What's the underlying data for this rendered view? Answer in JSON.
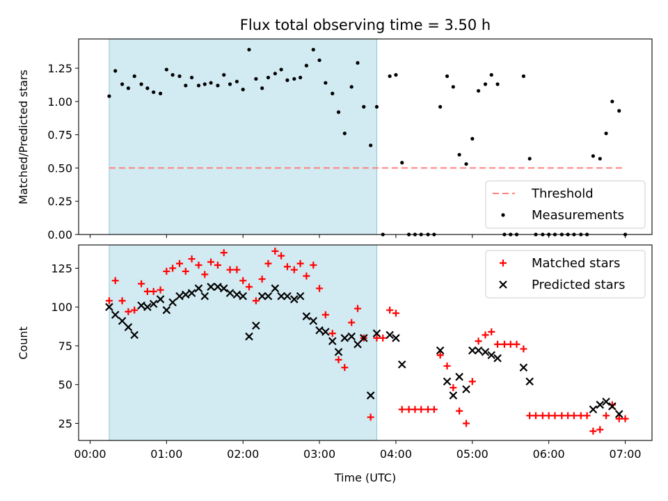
{
  "chart_data": [
    {
      "type": "scatter",
      "title": "Flux total observing time = 3.50 h",
      "xlabel": "",
      "ylabel": "Matched/Predicted stars",
      "xlim": [
        -0.15,
        7.35
      ],
      "ylim": [
        0,
        1.47
      ],
      "yticks": [
        0,
        0.25,
        0.5,
        0.75,
        1.0,
        1.25
      ],
      "ytick_labels": [
        "0.00",
        "0.25",
        "0.50",
        "0.75",
        "1.00",
        "1.25"
      ],
      "shaded_interval": [
        0.25,
        3.75
      ],
      "shade_color": "#add8e6",
      "threshold": {
        "name": "Threshold",
        "value": 0.5,
        "x_range": [
          0.25,
          7.0
        ],
        "color": "#ff8080",
        "style": "dashed"
      },
      "legend": {
        "location": "lower right",
        "entries": [
          "Threshold",
          "Measurements"
        ]
      },
      "series": [
        {
          "name": "Measurements",
          "marker": "point",
          "color": "#000000",
          "x": [
            0.25,
            0.33,
            0.42,
            0.5,
            0.58,
            0.67,
            0.75,
            0.83,
            0.92,
            1.0,
            1.08,
            1.17,
            1.25,
            1.33,
            1.42,
            1.5,
            1.58,
            1.67,
            1.75,
            1.83,
            1.92,
            2.0,
            2.08,
            2.17,
            2.25,
            2.33,
            2.42,
            2.5,
            2.58,
            2.67,
            2.75,
            2.83,
            2.92,
            3.0,
            3.08,
            3.17,
            3.25,
            3.33,
            3.42,
            3.5,
            3.58,
            3.67,
            3.75,
            3.83,
            3.92,
            4.0,
            4.08,
            4.17,
            4.25,
            4.33,
            4.42,
            4.5,
            4.58,
            4.67,
            4.75,
            4.83,
            4.92,
            5.0,
            5.08,
            5.17,
            5.25,
            5.33,
            5.42,
            5.5,
            5.58,
            5.67,
            5.75,
            5.83,
            5.92,
            6.0,
            6.08,
            6.17,
            6.25,
            6.33,
            6.42,
            6.5,
            6.58,
            6.67,
            6.75,
            6.83,
            6.92,
            7.0
          ],
          "y": [
            1.04,
            1.23,
            1.13,
            1.1,
            1.19,
            1.13,
            1.1,
            1.07,
            1.06,
            1.24,
            1.2,
            1.19,
            1.12,
            1.18,
            1.12,
            1.13,
            1.14,
            1.12,
            1.2,
            1.13,
            1.15,
            1.09,
            1.39,
            1.17,
            1.1,
            1.18,
            1.21,
            1.24,
            1.16,
            1.17,
            1.18,
            1.27,
            1.39,
            1.31,
            1.14,
            1.06,
            0.92,
            0.76,
            1.11,
            1.29,
            0.96,
            0.67,
            0.96,
            0.0,
            1.19,
            1.2,
            0.54,
            0.0,
            0.0,
            0.0,
            0.0,
            0.0,
            0.96,
            1.19,
            1.11,
            0.6,
            0.53,
            0.72,
            1.08,
            1.13,
            1.2,
            1.13,
            0.0,
            0.0,
            0.0,
            1.19,
            0.57,
            0.0,
            0.0,
            0.0,
            0.0,
            0.0,
            0.0,
            0.0,
            0.0,
            0.0,
            0.59,
            0.57,
            0.76,
            1.0,
            0.93,
            0.0
          ]
        }
      ]
    },
    {
      "type": "scatter",
      "title": "",
      "xlabel": "Time (UTC)",
      "ylabel": "Count",
      "xlim": [
        -0.15,
        7.35
      ],
      "ylim": [
        14,
        140
      ],
      "yticks": [
        25,
        50,
        75,
        100,
        125
      ],
      "ytick_labels": [
        "25",
        "50",
        "75",
        "100",
        "125"
      ],
      "xticks": [
        0,
        1,
        2,
        3,
        4,
        5,
        6,
        7
      ],
      "xtick_labels": [
        "00:00",
        "01:00",
        "02:00",
        "03:00",
        "04:00",
        "05:00",
        "06:00",
        "07:00"
      ],
      "shaded_interval": [
        0.25,
        3.75
      ],
      "shade_color": "#add8e6",
      "legend": {
        "location": "upper right",
        "entries": [
          "Matched stars",
          "Predicted stars"
        ]
      },
      "series": [
        {
          "name": "Matched stars",
          "marker": "plus",
          "color": "#ff0000",
          "x": [
            0.25,
            0.33,
            0.42,
            0.5,
            0.58,
            0.67,
            0.75,
            0.83,
            0.92,
            1.0,
            1.08,
            1.17,
            1.25,
            1.33,
            1.42,
            1.5,
            1.58,
            1.67,
            1.75,
            1.83,
            1.92,
            2.0,
            2.08,
            2.17,
            2.25,
            2.33,
            2.42,
            2.5,
            2.58,
            2.67,
            2.75,
            2.83,
            2.92,
            3.0,
            3.08,
            3.17,
            3.25,
            3.33,
            3.42,
            3.5,
            3.58,
            3.67,
            3.75,
            3.83,
            3.92,
            4.0,
            4.08,
            4.17,
            4.25,
            4.33,
            4.42,
            4.5,
            4.58,
            4.67,
            4.75,
            4.83,
            4.92,
            5.0,
            5.08,
            5.17,
            5.25,
            5.33,
            5.42,
            5.5,
            5.58,
            5.67,
            5.75,
            5.83,
            5.92,
            6.0,
            6.08,
            6.17,
            6.25,
            6.33,
            6.42,
            6.5,
            6.58,
            6.67,
            6.75,
            6.83,
            6.92,
            7.0
          ],
          "y": [
            104,
            117,
            104,
            97,
            98,
            115,
            110,
            110,
            111,
            123,
            125,
            128,
            123,
            131,
            127,
            121,
            129,
            127,
            135,
            124,
            124,
            117,
            113,
            104,
            118,
            128,
            136,
            133,
            126,
            124,
            128,
            120,
            127,
            112,
            95,
            83,
            66,
            61,
            90,
            99,
            80,
            29,
            80,
            80,
            98,
            96,
            34,
            34,
            34,
            34,
            34,
            34,
            69,
            62,
            48,
            33,
            25,
            52,
            78,
            82,
            84,
            76,
            76,
            76,
            76,
            73,
            30,
            30,
            30,
            30,
            30,
            30,
            30,
            30,
            30,
            30,
            20,
            21,
            30,
            37,
            28,
            28
          ]
        },
        {
          "name": "Predicted stars",
          "marker": "x",
          "color": "#000000",
          "x": [
            0.25,
            0.33,
            0.42,
            0.5,
            0.58,
            0.67,
            0.75,
            0.83,
            0.92,
            1.0,
            1.08,
            1.17,
            1.25,
            1.33,
            1.42,
            1.5,
            1.58,
            1.67,
            1.75,
            1.83,
            1.92,
            2.0,
            2.08,
            2.17,
            2.25,
            2.33,
            2.42,
            2.5,
            2.58,
            2.67,
            2.75,
            2.83,
            2.92,
            3.0,
            3.08,
            3.17,
            3.25,
            3.33,
            3.42,
            3.5,
            3.58,
            3.67,
            3.75,
            3.92,
            4.0,
            4.08,
            4.58,
            4.67,
            4.75,
            4.83,
            4.92,
            5.0,
            5.08,
            5.17,
            5.25,
            5.33,
            5.67,
            5.75,
            6.58,
            6.67,
            6.75,
            6.83,
            6.92
          ],
          "y": [
            100,
            95,
            91,
            87,
            82,
            101,
            100,
            102,
            105,
            98,
            103,
            107,
            108,
            109,
            112,
            107,
            113,
            113,
            112,
            109,
            108,
            107,
            81,
            88,
            107,
            107,
            112,
            107,
            107,
            105,
            107,
            94,
            91,
            85,
            84,
            78,
            71,
            80,
            81,
            76,
            80,
            43,
            83,
            82,
            80,
            63,
            72,
            52,
            43,
            55,
            47,
            72,
            72,
            71,
            69,
            67,
            61,
            52,
            34,
            37,
            39,
            36,
            31
          ]
        }
      ]
    }
  ]
}
